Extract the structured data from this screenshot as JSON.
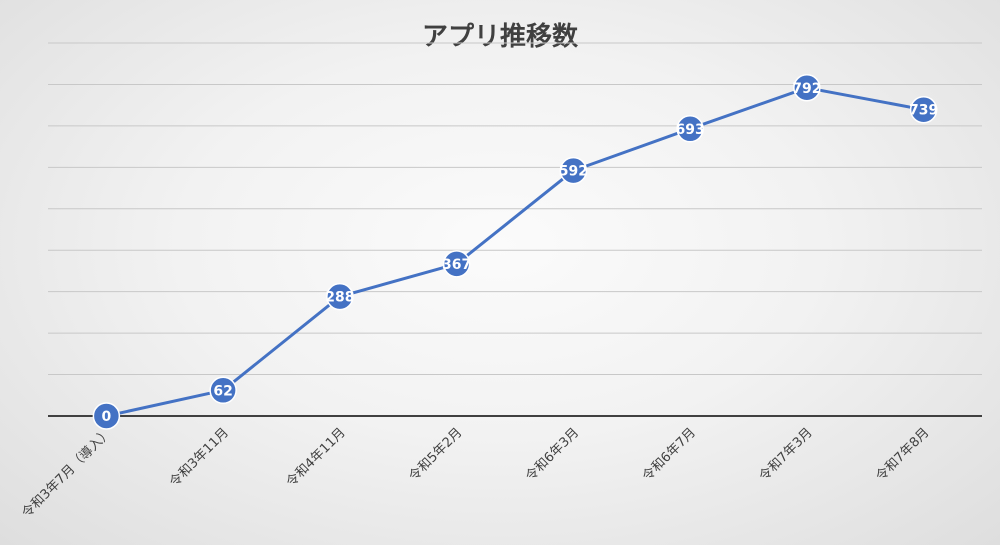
{
  "chart_data": {
    "type": "line",
    "title": "アプリ推移数",
    "xlabel": "",
    "ylabel": "",
    "categories": [
      "令和3年7月（導入）",
      "令和3年11月",
      "令和4年11月",
      "令和5年2月",
      "令和6年3月",
      "令和6年7月",
      "令和7年3月",
      "令和7年8月"
    ],
    "series": [
      {
        "values": [
          0,
          62,
          288,
          367,
          592,
          693,
          792,
          739
        ]
      }
    ],
    "ylim": [
      0,
      900
    ],
    "ytick_step": 100,
    "grid": true,
    "legend": "none",
    "colors": {
      "line": "#4472c4",
      "marker": "#4472c4",
      "marker_stroke": "#ffffff",
      "data_label": "#ffffff",
      "grid": "#c8c8c8",
      "axis": "#404040",
      "title": "#404040",
      "tick_label": "#404040"
    }
  }
}
